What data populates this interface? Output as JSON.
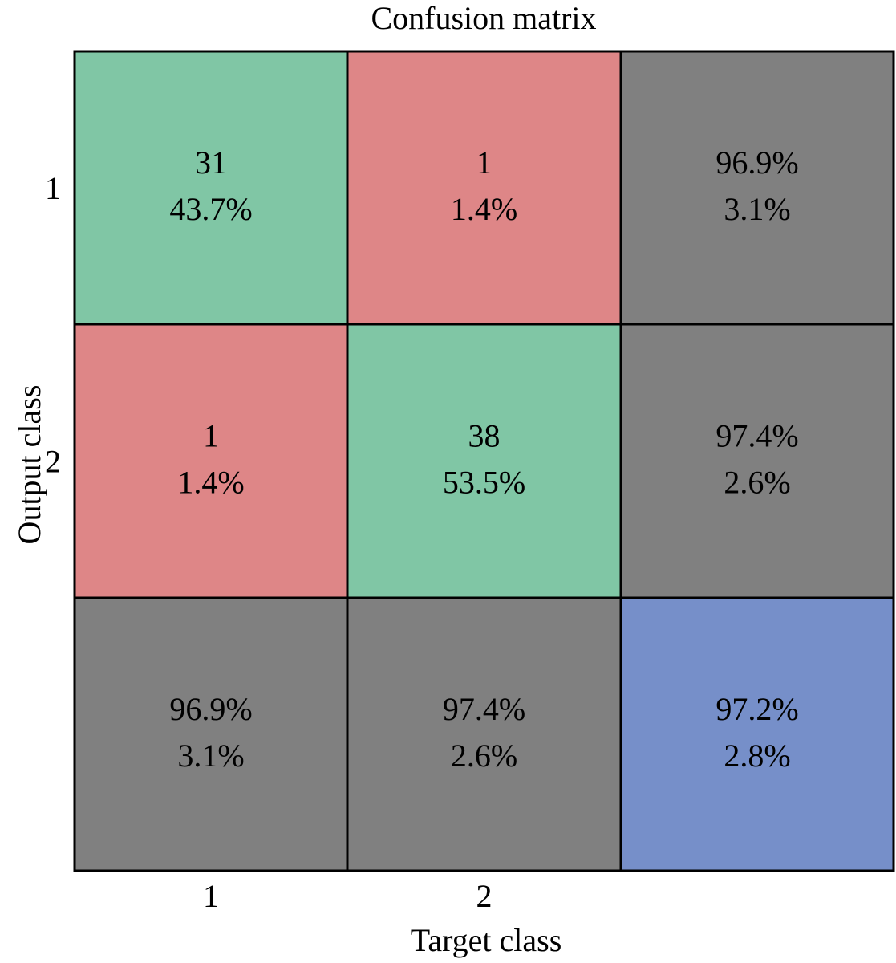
{
  "chart_data": {
    "type": "heatmap",
    "title": "Confusion matrix",
    "xlabel": "Target class",
    "ylabel": "Output class",
    "x_tick_labels": [
      "1",
      "2"
    ],
    "y_tick_labels": [
      "1",
      "2"
    ],
    "cells": [
      [
        {
          "kind": "correct",
          "count": "31",
          "percent": "43.7%"
        },
        {
          "kind": "incorrect",
          "count": "1",
          "percent": "1.4%"
        },
        {
          "kind": "row_summary",
          "good": "96.9%",
          "bad": "3.1%"
        }
      ],
      [
        {
          "kind": "incorrect",
          "count": "1",
          "percent": "1.4%"
        },
        {
          "kind": "correct",
          "count": "38",
          "percent": "53.5%"
        },
        {
          "kind": "row_summary",
          "good": "97.4%",
          "bad": "2.6%"
        }
      ],
      [
        {
          "kind": "col_summary",
          "good": "96.9%",
          "bad": "3.1%"
        },
        {
          "kind": "col_summary",
          "good": "97.4%",
          "bad": "2.6%"
        },
        {
          "kind": "overall",
          "good": "97.2%",
          "bad": "2.8%"
        }
      ]
    ],
    "colors": {
      "correct": "#80c6a5",
      "incorrect": "#de8687",
      "summary": "#808080",
      "overall": "#768fc9",
      "good_text": "#119844",
      "bad_text": "#e0102a",
      "text": "#000000",
      "grid": "#000000"
    }
  }
}
